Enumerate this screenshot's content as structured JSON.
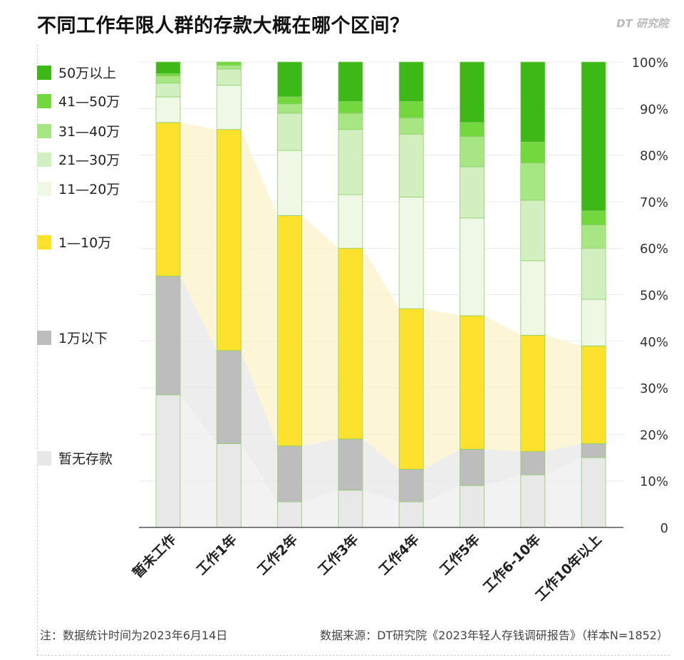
{
  "title": "不同工作年限人群的存款大概在哪个区间？",
  "brand": "DT 研究院",
  "footer": {
    "note": "注：数据统计时间为2023年6月14日",
    "source": "数据来源：DT研究院《2023年轻人存钱调研报告》（样本N=1852）"
  },
  "chart_data": {
    "type": "bar",
    "stacked": true,
    "normalized": true,
    "title": "不同工作年限人群的存款大概在哪个区间？",
    "categories": [
      "暂未工作",
      "工作1年",
      "工作2年",
      "工作3年",
      "工作4年",
      "工作5年",
      "工作6-10年",
      "工作10年以上"
    ],
    "yticks": [
      "0",
      "10%",
      "20%",
      "30%",
      "40%",
      "50%",
      "60%",
      "70%",
      "80%",
      "90%",
      "100%"
    ],
    "ylim": [
      0,
      100
    ],
    "legend_position": "left",
    "series": [
      {
        "name": "暂无存款",
        "color": "#e8e8e8",
        "values": [
          28.5,
          18.0,
          5.5,
          8.0,
          5.5,
          9.0,
          11.3,
          15.0
        ]
      },
      {
        "name": "1万以下",
        "color": "#bdbdbd",
        "values": [
          25.5,
          20.0,
          12.0,
          11.0,
          7.0,
          7.8,
          5.0,
          3.0
        ]
      },
      {
        "name": "1—10万",
        "color": "#fce12d",
        "values": [
          33.0,
          47.5,
          49.5,
          41.0,
          34.5,
          28.7,
          25.0,
          21.0
        ]
      },
      {
        "name": "11—20万",
        "color": "#eef8e4",
        "values": [
          5.5,
          9.5,
          14.0,
          11.5,
          24.0,
          21.0,
          16.0,
          10.0
        ]
      },
      {
        "name": "21—30万",
        "color": "#d2efc0",
        "values": [
          3.0,
          3.5,
          8.0,
          14.0,
          13.5,
          11.0,
          13.0,
          11.0
        ]
      },
      {
        "name": "31—40万",
        "color": "#a8e683",
        "values": [
          1.5,
          0.8,
          2.0,
          3.5,
          3.5,
          6.5,
          8.0,
          5.0
        ]
      },
      {
        "name": "41—50万",
        "color": "#72d83e",
        "values": [
          0.5,
          0.7,
          1.5,
          2.5,
          3.5,
          3.0,
          4.5,
          3.0
        ]
      },
      {
        "name": "50万以上",
        "color": "#3cb916",
        "values": [
          2.5,
          0.0,
          7.5,
          8.5,
          8.5,
          13.0,
          17.2,
          32.0
        ]
      }
    ]
  }
}
